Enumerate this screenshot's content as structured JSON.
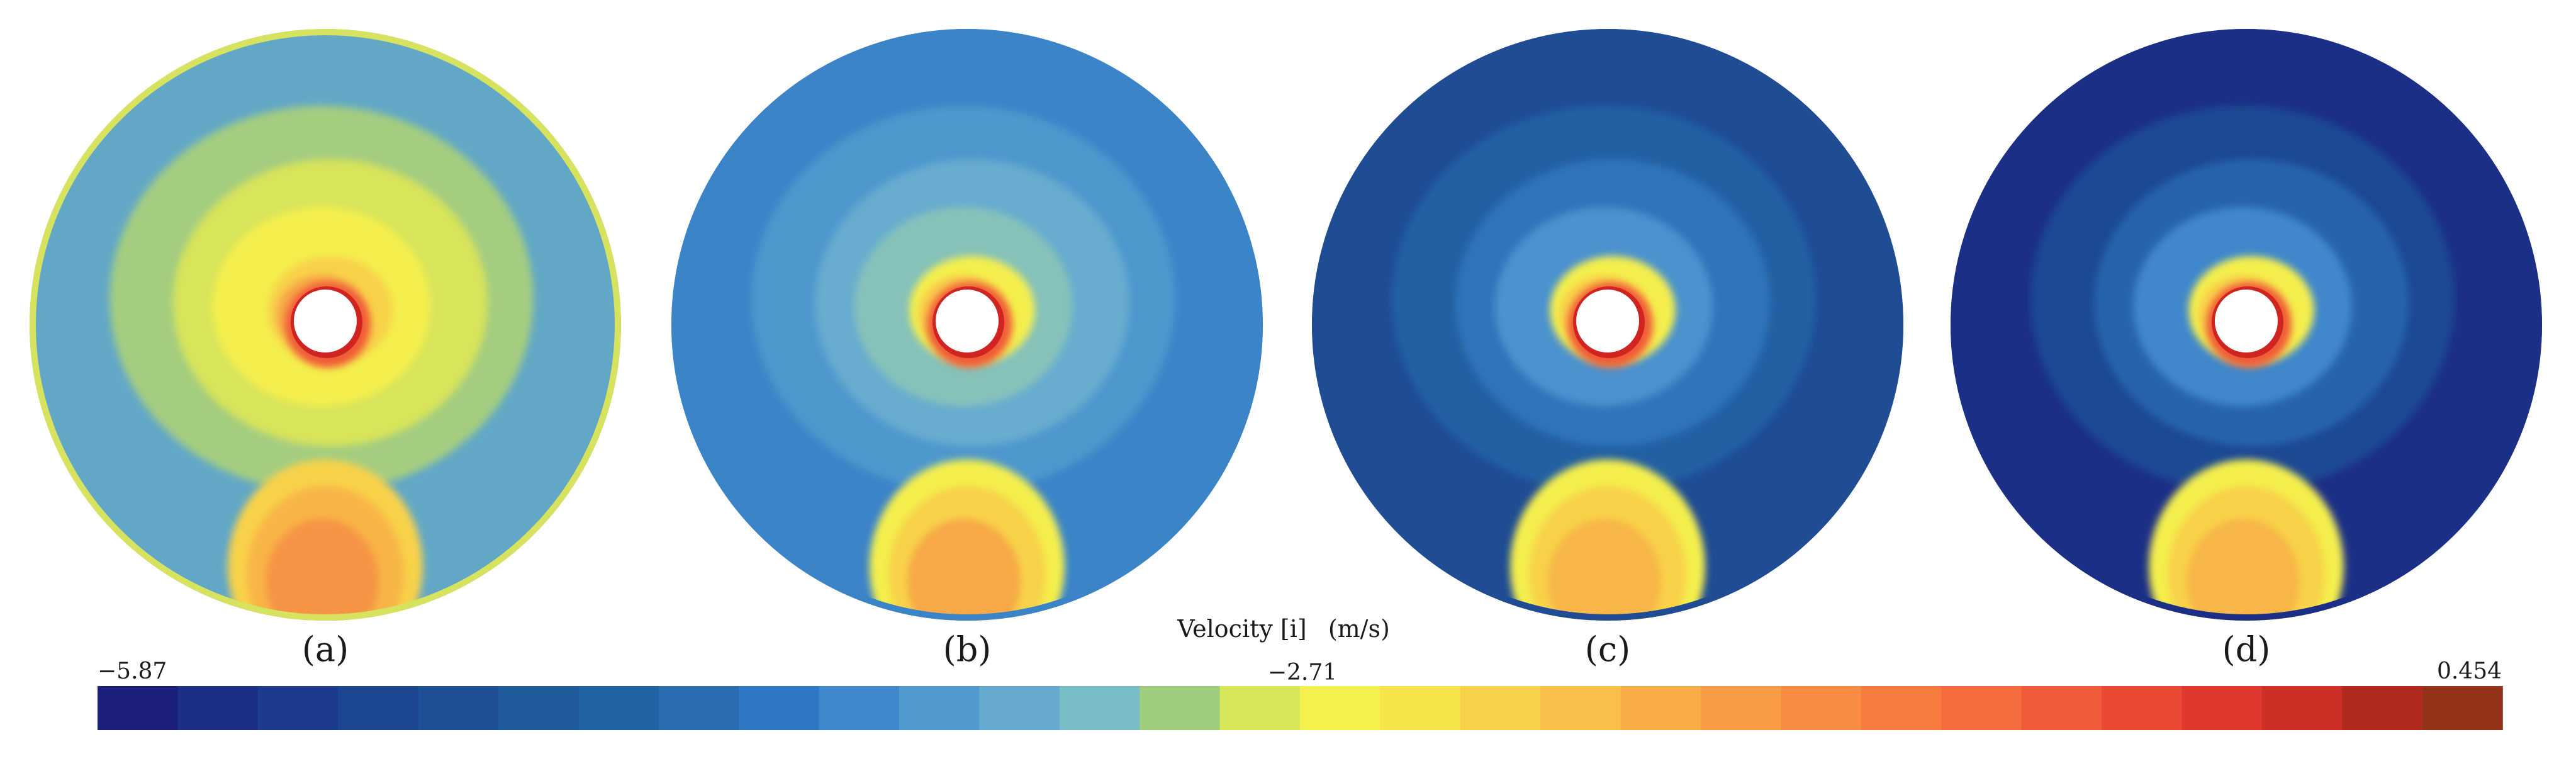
{
  "chart_data": {
    "type": "heatmap",
    "quantity": "Velocity [i]",
    "unit": "(m/s)",
    "colorbar": {
      "min": -5.87,
      "mid": -2.71,
      "max": 0.454,
      "min_label": "−5.87",
      "mid_label": "−2.71",
      "max_label": "0.454",
      "colors": [
        "#1c1f7c",
        "#1c2e86",
        "#1d3b8c",
        "#1d4690",
        "#1e4f94",
        "#205b9c",
        "#2263a4",
        "#2a6cb0",
        "#2f78c4",
        "#3f88cb",
        "#519ace",
        "#66abcf",
        "#79bdc6",
        "#9fcd7e",
        "#d8e659",
        "#f4f14c",
        "#f7e34a",
        "#f8d14a",
        "#f9bf48",
        "#f9ad46",
        "#f99c45",
        "#f98c43",
        "#f77c40",
        "#f46c3d",
        "#f05c39",
        "#ea4a34",
        "#e0382e",
        "#cc2f26",
        "#b1291f",
        "#93341a"
      ]
    },
    "panels": [
      {
        "label": "(a)",
        "background": "#62a8c6",
        "rim": "#d7e25e",
        "levels": [
          "#a4cd80",
          "#d8e45a",
          "#f4ef4e",
          "#f8d24a",
          "#f6a546"
        ],
        "jet_levels": [
          "#f8d24a",
          "#f8b546",
          "#f69444"
        ],
        "hole_rim": [
          "#f05c39",
          "#cf2420"
        ]
      },
      {
        "label": "(b)",
        "background": "#3b84c8",
        "rim": "#3b84c8",
        "levels": [
          "#4e98cd",
          "#67accf",
          "#86c2ba",
          "#f4ef4e",
          "#f8c849"
        ],
        "jet_levels": [
          "#f4ef4e",
          "#f8d24a",
          "#f7a846"
        ],
        "hole_rim": [
          "#f05c39",
          "#cf2420"
        ]
      },
      {
        "label": "(c)",
        "background": "#1f4c93",
        "rim": "#1f4c93",
        "levels": [
          "#2161a2",
          "#2d74bb",
          "#4b92ce",
          "#f4ef4e",
          "#f8d04a"
        ],
        "jet_levels": [
          "#f4ef4e",
          "#f8d24a",
          "#f7b646"
        ],
        "hole_rim": [
          "#f05c39",
          "#cf2420"
        ]
      },
      {
        "label": "(d)",
        "background": "#1c2f86",
        "rim": "#1c2f86",
        "levels": [
          "#1f4a92",
          "#2863ab",
          "#3f88cb",
          "#f4ef4e",
          "#f8d04a"
        ],
        "jet_levels": [
          "#f4ef4e",
          "#f8d24a",
          "#f7b646"
        ],
        "hole_rim": [
          "#f05c39",
          "#cf2420"
        ]
      }
    ]
  }
}
